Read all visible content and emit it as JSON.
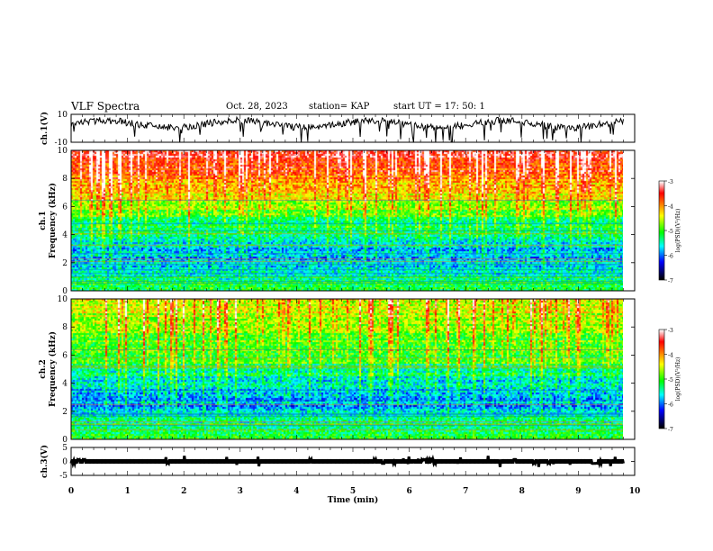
{
  "header": {
    "title": "VLF Spectra",
    "date": "Oct. 28, 2023",
    "station": "station= KAP",
    "start": "start  UT =   17: 50: 1"
  },
  "chart_data": [
    {
      "type": "line",
      "panel": "ch1-waveform",
      "ylabel": "ch.1(V)",
      "ylim": [
        -10,
        10
      ],
      "yticks": [
        10,
        -10
      ],
      "xlim": [
        0,
        10
      ],
      "x_end": 9.8,
      "signal_baseline": 3,
      "line_color": "#000000"
    },
    {
      "type": "heatmap",
      "panel": "ch1-spectrogram",
      "ylabel": "ch.1\nFrequency (kHz)",
      "ylim": [
        0,
        10
      ],
      "yticks": [
        0,
        2,
        4,
        6,
        8,
        10
      ],
      "xlim": [
        0,
        10
      ],
      "x_end": 9.8,
      "zlim": [
        -7,
        -3
      ],
      "colorbar_label": "log(PSD)(V²/Hz)",
      "colorbar_ticks": [
        -3,
        -4,
        -5,
        -6,
        -7
      ],
      "profile_khz": [
        0,
        1,
        2,
        3,
        4,
        5,
        6,
        7,
        8,
        9,
        10
      ],
      "profile_log_psd": [
        -5.0,
        -5.3,
        -5.7,
        -5.8,
        -5.6,
        -5.2,
        -4.7,
        -4.4,
        -4.0,
        -3.6,
        -3.3
      ]
    },
    {
      "type": "heatmap",
      "panel": "ch2-spectrogram",
      "ylabel": "ch.2\nFrequency (kHz)",
      "ylim": [
        0,
        10
      ],
      "yticks": [
        0,
        2,
        4,
        6,
        8,
        10
      ],
      "xlim": [
        0,
        10
      ],
      "x_end": 9.8,
      "zlim": [
        -7,
        -3
      ],
      "colorbar_label": "log(PSD)(V²/Hz)",
      "colorbar_ticks": [
        -3,
        -4,
        -5,
        -6,
        -7
      ],
      "profile_khz": [
        0,
        1,
        2,
        3,
        4,
        5,
        6,
        7,
        8,
        9,
        10
      ],
      "profile_log_psd": [
        -5.0,
        -5.3,
        -5.8,
        -5.9,
        -5.6,
        -5.3,
        -5.0,
        -4.9,
        -4.8,
        -4.6,
        -4.5
      ]
    },
    {
      "type": "line",
      "panel": "ch3-waveform",
      "ylabel": "ch.3(V)",
      "ylim": [
        -5,
        5
      ],
      "yticks": [
        5,
        0,
        -5
      ],
      "xlim": [
        0,
        10
      ],
      "x_end": 9.8,
      "signal_baseline": 0,
      "line_color": "#000000"
    }
  ],
  "xaxis": {
    "label": "Time (min)",
    "ticks": [
      0,
      1,
      2,
      3,
      4,
      5,
      6,
      7,
      8,
      9,
      10
    ]
  }
}
